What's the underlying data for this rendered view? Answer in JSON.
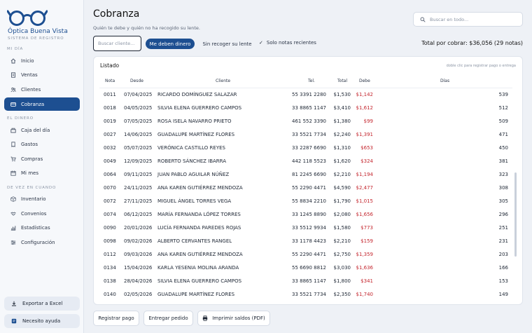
{
  "brand": {
    "name": "Óptica Buena Vista",
    "tagline": "SISTEMA DE REGISTRO"
  },
  "sidebar": {
    "section_day": "MI DÍA",
    "section_money": "EL DINERO",
    "section_sometimes": "DE VEZ EN CUANDO",
    "items": [
      {
        "label": "Inicio",
        "icon": "home-icon"
      },
      {
        "label": "Ventas",
        "icon": "document-icon"
      },
      {
        "label": "Clientes",
        "icon": "users-icon"
      },
      {
        "label": "Cobranza",
        "icon": "card-icon"
      },
      {
        "label": "Caja del día",
        "icon": "cash-icon"
      },
      {
        "label": "Gastos",
        "icon": "receipt-icon"
      },
      {
        "label": "Compras",
        "icon": "cart-icon"
      },
      {
        "label": "Mi mes",
        "icon": "calendar-icon"
      },
      {
        "label": "Inventario",
        "icon": "box-icon"
      },
      {
        "label": "Convenios",
        "icon": "handshake-icon"
      },
      {
        "label": "Estadísticas",
        "icon": "chart-icon"
      },
      {
        "label": "Configuración",
        "icon": "gear-icon"
      }
    ],
    "export_label": "Exportar a Excel",
    "help_label": "Necesito ayuda"
  },
  "header": {
    "title": "Cobranza",
    "subtitle": "Quién te debe y quién no ha recogido su lente.",
    "search_placeholder": "Buscar en todo..."
  },
  "filters": {
    "client_placeholder": "Buscar cliente...",
    "owe_label": "Me deben dinero",
    "pickup_label": "Sin recoger su lente",
    "recent_label": "Solo notas recientes",
    "total_text": "Total por cobrar: $36,056  (29 notas)"
  },
  "table": {
    "title": "Listado",
    "hint": "doble clic para registrar pago o entrega",
    "columns": [
      "Nota",
      "Desde",
      "Cliente",
      "Tel.",
      "Total",
      "Debe",
      "Días"
    ],
    "rows": [
      [
        "0011",
        "07/04/2025",
        "RICARDO DOMÍNGUEZ SALAZAR",
        "55 3391 2280",
        "$1,530",
        "$1,142",
        "539"
      ],
      [
        "0018",
        "04/05/2025",
        "SILVIA ELENA GUERRERO CAMPOS",
        "33 8865 1147",
        "$3,410",
        "$1,612",
        "512"
      ],
      [
        "0019",
        "07/05/2025",
        "ROSA ISELA NAVARRO PRIETO",
        "461 552 3390",
        "$1,380",
        "$99",
        "509"
      ],
      [
        "0027",
        "14/06/2025",
        "GUADALUPE MARTÍNEZ FLORES",
        "33 5521 7734",
        "$2,240",
        "$1,391",
        "471"
      ],
      [
        "0032",
        "05/07/2025",
        "VERÓNICA CASTILLO REYES",
        "33 2287 6690",
        "$1,310",
        "$653",
        "450"
      ],
      [
        "0049",
        "12/09/2025",
        "ROBERTO SÁNCHEZ IBARRA",
        "442 118 5523",
        "$1,620",
        "$324",
        "381"
      ],
      [
        "0064",
        "09/11/2025",
        "JUAN PABLO AGUILAR NÚÑEZ",
        "81 2245 6690",
        "$2,210",
        "$1,194",
        "323"
      ],
      [
        "0070",
        "24/11/2025",
        "ANA KAREN GUTIÉRREZ MENDOZA",
        "55 2290 4471",
        "$4,590",
        "$2,477",
        "308"
      ],
      [
        "0072",
        "27/11/2025",
        "MIGUEL ÁNGEL TORRES VEGA",
        "55 8834 2210",
        "$1,790",
        "$1,015",
        "305"
      ],
      [
        "0074",
        "06/12/2025",
        "MARÍA FERNANDA LÓPEZ TORRES",
        "33 1245 8890",
        "$2,080",
        "$1,656",
        "296"
      ],
      [
        "0090",
        "20/01/2026",
        "LUCÍA FERNANDA PAREDES ROJAS",
        "33 5512 9934",
        "$1,580",
        "$773",
        "251"
      ],
      [
        "0098",
        "09/02/2026",
        "ALBERTO CERVANTES RANGEL",
        "33 1178 4423",
        "$2,210",
        "$159",
        "231"
      ],
      [
        "0112",
        "09/03/2026",
        "ANA KAREN GUTIÉRREZ MENDOZA",
        "55 2290 4471",
        "$2,750",
        "$1,359",
        "203"
      ],
      [
        "0134",
        "15/04/2026",
        "KARLA YESENIA MOLINA ARANDA",
        "55 6690 8812",
        "$3,030",
        "$1,636",
        "166"
      ],
      [
        "0138",
        "28/04/2026",
        "SILVIA ELENA GUERRERO CAMPOS",
        "33 8865 1147",
        "$1,800",
        "$341",
        "153"
      ],
      [
        "0140",
        "02/05/2026",
        "GUADALUPE MARTÍNEZ FLORES",
        "33 5521 7734",
        "$2,350",
        "$1,740",
        "149"
      ]
    ]
  },
  "actions": {
    "register_payment": "Registrar pago",
    "deliver_order": "Entregar pedido",
    "print_balances": "Imprimir saldos (PDF)"
  },
  "colors": {
    "accent": "#1d4f91",
    "debt": "#c4262e"
  }
}
